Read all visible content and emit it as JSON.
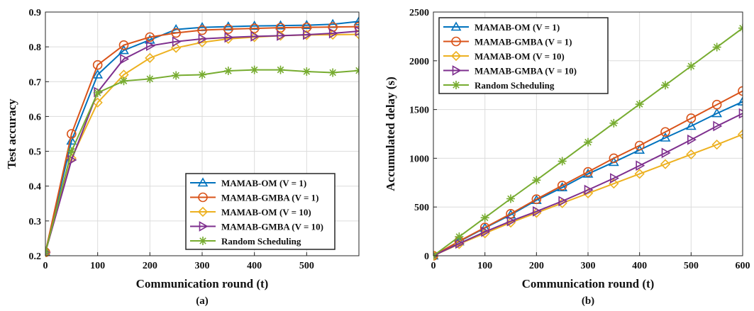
{
  "series_style": [
    {
      "color": "#0072BD",
      "marker": "triangle-up"
    },
    {
      "color": "#D95319",
      "marker": "circle"
    },
    {
      "color": "#EDB120",
      "marker": "diamond"
    },
    {
      "color": "#7E2F8E",
      "marker": "triangle-right"
    },
    {
      "color": "#77AC30",
      "marker": "asterisk"
    }
  ],
  "chart_data": [
    {
      "type": "line",
      "caption": "(a)",
      "xlabel": "Communication round (t)",
      "ylabel": "Test accuracy",
      "xlim": [
        0,
        600
      ],
      "ylim": [
        0.2,
        0.9
      ],
      "xticks": [
        0,
        100,
        200,
        300,
        400,
        500
      ],
      "yticks": [
        0.2,
        0.3,
        0.4,
        0.5,
        0.6,
        0.7,
        0.8,
        0.9
      ],
      "xtick_labels": [
        "0",
        "100",
        "200",
        "300",
        "400",
        "500"
      ],
      "ytick_labels": [
        "0.2",
        "0.3",
        "0.4",
        "0.5",
        "0.6",
        "0.7",
        "0.8",
        "0.9"
      ],
      "grid": true,
      "legend_position": "lower-right",
      "series": [
        {
          "name": "MAMAB-OM (V = 1)",
          "x": [
            0,
            50,
            100,
            150,
            200,
            250,
            300,
            350,
            400,
            450,
            500,
            550,
            600
          ],
          "y": [
            0.21,
            0.53,
            0.72,
            0.79,
            0.82,
            0.85,
            0.856,
            0.858,
            0.86,
            0.861,
            0.862,
            0.865,
            0.873
          ]
        },
        {
          "name": "MAMAB-GMBA (V = 1)",
          "x": [
            0,
            50,
            100,
            150,
            200,
            250,
            300,
            350,
            400,
            450,
            500,
            550,
            600
          ],
          "y": [
            0.21,
            0.55,
            0.748,
            0.805,
            0.828,
            0.84,
            0.848,
            0.851,
            0.853,
            0.855,
            0.856,
            0.857,
            0.858
          ]
        },
        {
          "name": "MAMAB-OM (V = 10)",
          "x": [
            0,
            50,
            100,
            150,
            200,
            250,
            300,
            350,
            400,
            450,
            500,
            550,
            600
          ],
          "y": [
            0.21,
            0.48,
            0.64,
            0.72,
            0.768,
            0.797,
            0.813,
            0.823,
            0.828,
            0.832,
            0.834,
            0.835,
            0.836
          ]
        },
        {
          "name": "MAMAB-GMBA (V = 10)",
          "x": [
            0,
            50,
            100,
            150,
            200,
            250,
            300,
            350,
            400,
            450,
            500,
            550,
            600
          ],
          "y": [
            0.21,
            0.475,
            0.67,
            0.765,
            0.803,
            0.815,
            0.823,
            0.827,
            0.83,
            0.832,
            0.835,
            0.839,
            0.845
          ]
        },
        {
          "name": "Random Scheduling",
          "x": [
            0,
            50,
            100,
            150,
            200,
            250,
            300,
            350,
            400,
            450,
            500,
            550,
            600
          ],
          "y": [
            0.21,
            0.5,
            0.668,
            0.702,
            0.708,
            0.718,
            0.72,
            0.731,
            0.734,
            0.734,
            0.729,
            0.726,
            0.732
          ]
        }
      ]
    },
    {
      "type": "line",
      "caption": "(b)",
      "xlabel": "Communication round (t)",
      "ylabel": "Accumulated delay (s)",
      "xlim": [
        0,
        600
      ],
      "ylim": [
        0,
        2500
      ],
      "xticks": [
        0,
        100,
        200,
        300,
        400,
        500,
        600
      ],
      "yticks": [
        0,
        500,
        1000,
        1500,
        2000,
        2500
      ],
      "xtick_labels": [
        "0",
        "100",
        "200",
        "300",
        "400",
        "500",
        "600"
      ],
      "ytick_labels": [
        "0",
        "500",
        "1000",
        "1500",
        "2000",
        "2500"
      ],
      "grid": true,
      "legend_position": "top-left",
      "series": [
        {
          "name": "MAMAB-OM (V = 1)",
          "x": [
            0,
            50,
            100,
            150,
            200,
            250,
            300,
            350,
            400,
            450,
            500,
            550,
            600
          ],
          "y": [
            0,
            145,
            285,
            420,
            570,
            700,
            840,
            960,
            1085,
            1210,
            1330,
            1460,
            1580
          ]
        },
        {
          "name": "MAMAB-GMBA (V = 1)",
          "x": [
            0,
            50,
            100,
            150,
            200,
            250,
            300,
            350,
            400,
            450,
            500,
            550,
            600
          ],
          "y": [
            0,
            150,
            290,
            430,
            580,
            720,
            860,
            1000,
            1130,
            1270,
            1410,
            1550,
            1690
          ]
        },
        {
          "name": "MAMAB-OM (V = 10)",
          "x": [
            0,
            50,
            100,
            150,
            200,
            250,
            300,
            350,
            400,
            450,
            500,
            550,
            600
          ],
          "y": [
            0,
            120,
            230,
            340,
            440,
            540,
            640,
            740,
            840,
            940,
            1040,
            1140,
            1245
          ]
        },
        {
          "name": "MAMAB-GMBA (V = 10)",
          "x": [
            0,
            50,
            100,
            150,
            200,
            250,
            300,
            350,
            400,
            450,
            500,
            550,
            600
          ],
          "y": [
            0,
            125,
            245,
            355,
            455,
            560,
            675,
            795,
            925,
            1055,
            1190,
            1330,
            1460
          ]
        },
        {
          "name": "Random Scheduling",
          "x": [
            0,
            50,
            100,
            150,
            200,
            250,
            300,
            350,
            400,
            450,
            500,
            550,
            600
          ],
          "y": [
            0,
            195,
            390,
            585,
            775,
            970,
            1165,
            1360,
            1555,
            1750,
            1945,
            2140,
            2335
          ]
        }
      ]
    }
  ]
}
